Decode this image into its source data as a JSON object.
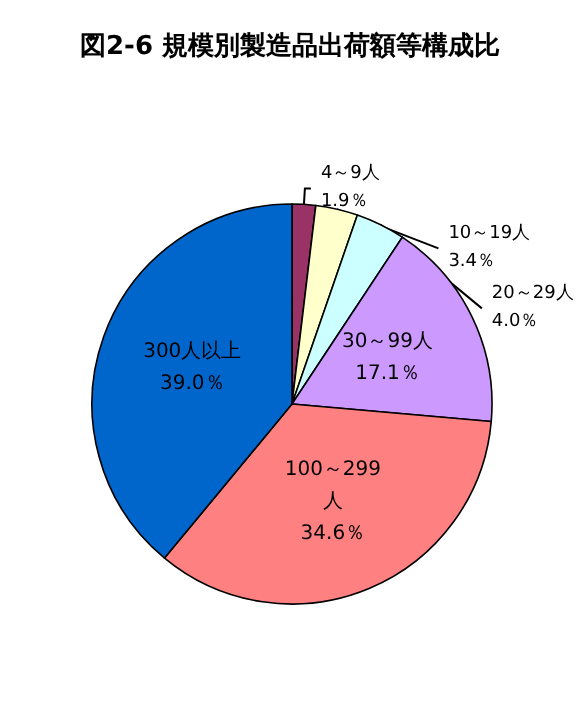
{
  "chart_data": {
    "type": "pie",
    "title": "図2-6 規模別製造品出荷額等構成比",
    "categories": [
      "4～9人",
      "10～19人",
      "20～29人",
      "30～99人",
      "100～299人",
      "300人以上"
    ],
    "values": [
      1.9,
      3.4,
      4.0,
      17.1,
      34.6,
      39.0
    ],
    "value_labels": [
      "1.9％",
      "3.4％",
      "4.0％",
      "17.1％",
      "34.6％",
      "39.0％"
    ],
    "colors": [
      "#993366",
      "#ffffcc",
      "#ccffff",
      "#cc99ff",
      "#ff8080",
      "#0066cc"
    ],
    "legend": false
  }
}
